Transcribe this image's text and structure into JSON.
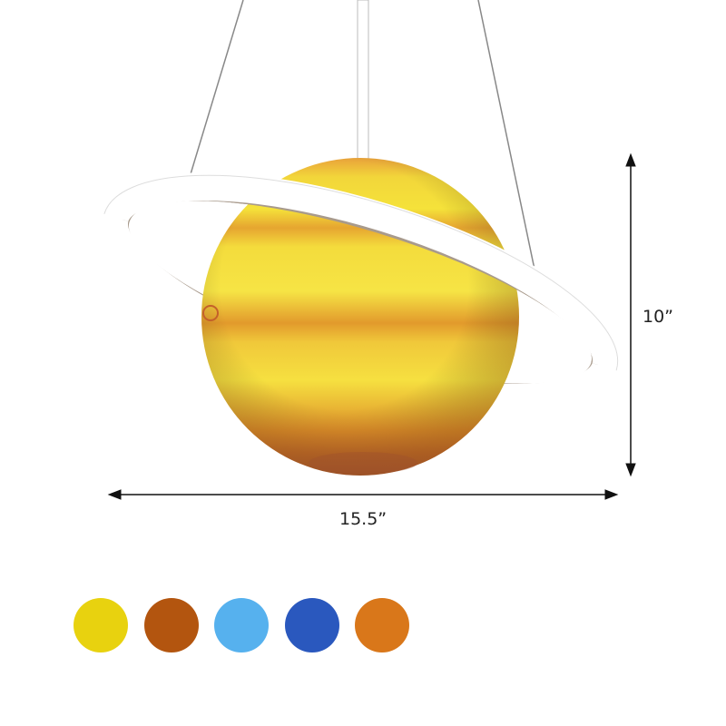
{
  "product": {
    "planet_colors": {
      "light": "#f5e23a",
      "mid": "#efbf2a",
      "band": "#e0952a",
      "dark": "#b9642a"
    },
    "ring_color": "#ffffff",
    "ring_inner_color": "#a89a8c"
  },
  "dimensions": {
    "height_label": "10”",
    "width_label": "15.5”"
  },
  "color_options": [
    {
      "name": "yellow",
      "hex": "#e8d20f"
    },
    {
      "name": "brown",
      "hex": "#b3550f"
    },
    {
      "name": "light-blue",
      "hex": "#56b1ee"
    },
    {
      "name": "blue",
      "hex": "#2a58be"
    },
    {
      "name": "orange",
      "hex": "#d9771a"
    }
  ]
}
